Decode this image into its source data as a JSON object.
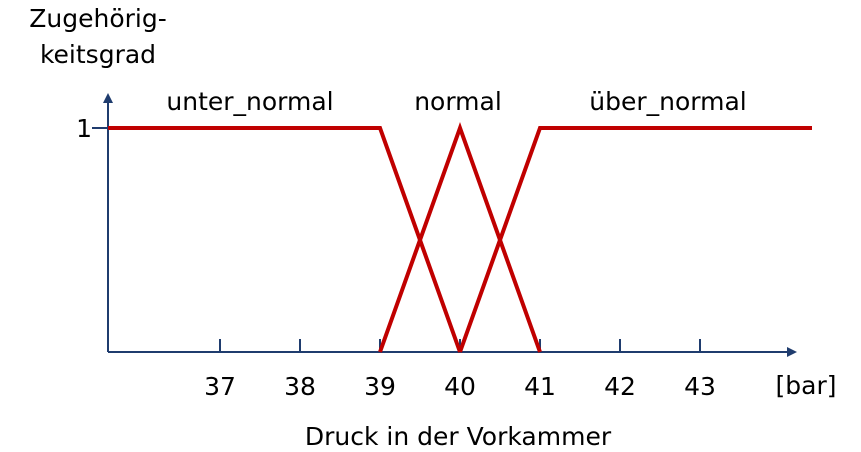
{
  "chart_data": {
    "type": "line",
    "ylabel": [
      "Zugehörig-",
      "keitsgrad"
    ],
    "xlabel": "Druck in der Vorkammer",
    "xunit": "[bar]",
    "xlim": [
      35.6,
      44.4
    ],
    "xticks": [
      37,
      38,
      39,
      40,
      41,
      42,
      43
    ],
    "ylim": [
      0,
      1
    ],
    "yticks": [
      1
    ],
    "series": [
      {
        "name": "unter_normal",
        "color": "#c00000",
        "x": [
          35.6,
          39,
          40
        ],
        "values": [
          1,
          1,
          0
        ]
      },
      {
        "name": "normal",
        "color": "#c00000",
        "x": [
          39,
          40,
          41
        ],
        "values": [
          0,
          1,
          0
        ]
      },
      {
        "name": "über_normal",
        "color": "#c00000",
        "x": [
          40,
          41,
          44.4
        ],
        "values": [
          0,
          1,
          1
        ]
      }
    ]
  }
}
